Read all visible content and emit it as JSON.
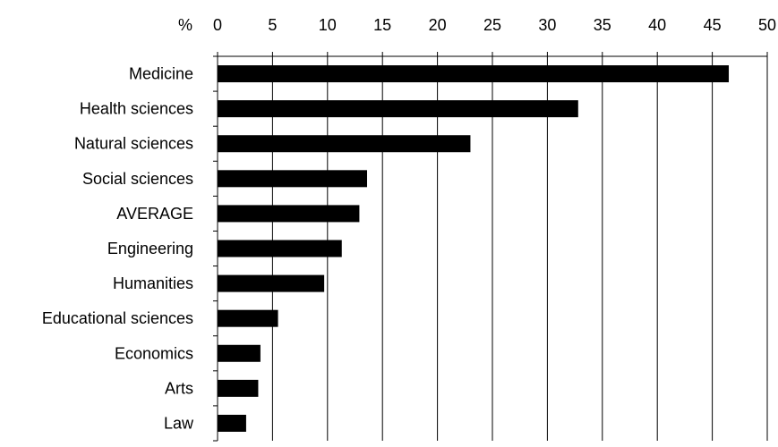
{
  "chart_data": {
    "type": "bar",
    "orientation": "horizontal",
    "unit_label": "%",
    "categories": [
      "Medicine",
      "Health sciences",
      "Natural sciences",
      "Social sciences",
      "AVERAGE",
      "Engineering",
      "Humanities",
      "Educational sciences",
      "Economics",
      "Arts",
      "Law"
    ],
    "values": [
      46.5,
      32.8,
      23.0,
      13.6,
      12.9,
      11.3,
      9.7,
      5.5,
      3.9,
      3.7,
      2.6
    ],
    "xlim": [
      0,
      50
    ],
    "xticks": [
      "0",
      "5",
      "10",
      "15",
      "20",
      "25",
      "30",
      "35",
      "40",
      "45",
      "50"
    ],
    "axis_position": "top",
    "grid": "vertical",
    "bar_color": "#000000",
    "grid_color": "#000000"
  }
}
